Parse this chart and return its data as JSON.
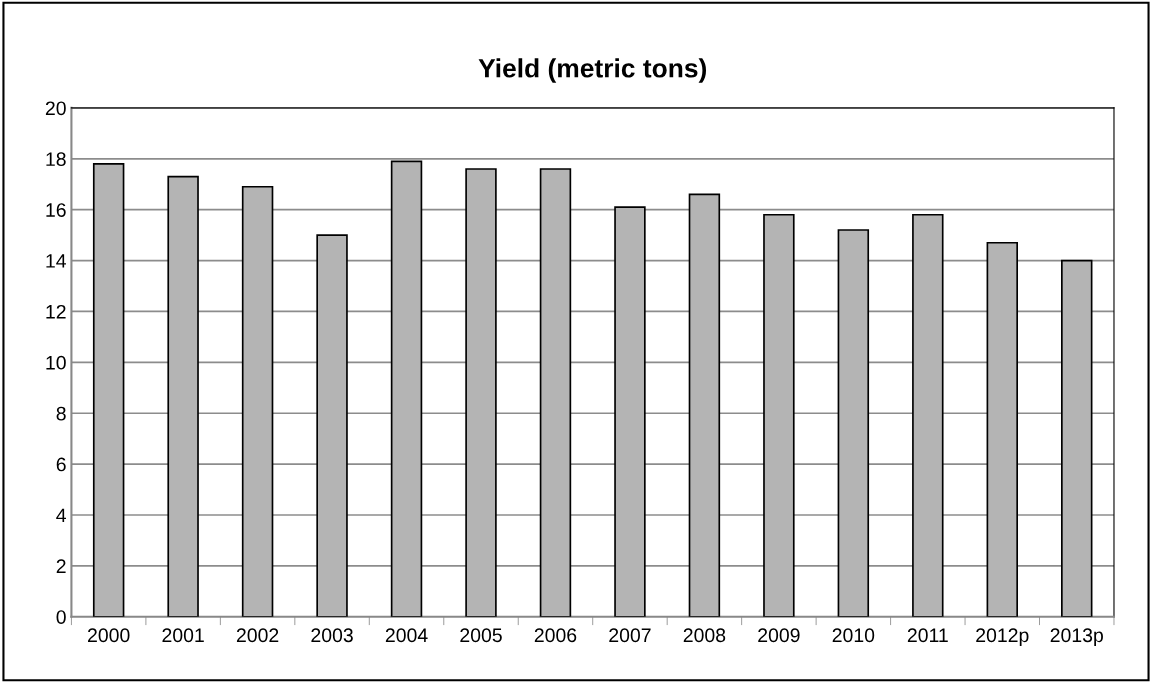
{
  "chart_data": {
    "type": "bar",
    "title": "Yield (metric tons)",
    "categories": [
      "2000",
      "2001",
      "2002",
      "2003",
      "2004",
      "2005",
      "2006",
      "2007",
      "2008",
      "2009",
      "2010",
      "2011",
      "2012p",
      "2013p"
    ],
    "values": [
      17.8,
      17.3,
      16.9,
      15.0,
      17.9,
      17.6,
      17.6,
      16.1,
      16.6,
      15.8,
      15.2,
      15.8,
      14.7,
      14.0
    ],
    "color": "#b4b4b4",
    "ylim": [
      0,
      20
    ],
    "yticks": [
      0,
      2,
      4,
      6,
      8,
      10,
      12,
      14,
      16,
      18,
      20
    ],
    "grid": "y",
    "legend": false
  }
}
